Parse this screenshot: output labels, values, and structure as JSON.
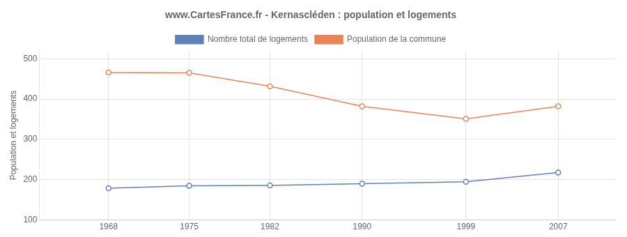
{
  "chart_data": {
    "type": "line",
    "title": "www.CartesFrance.fr - Kernascléden : population et logements",
    "ylabel": "Population et logements",
    "x": [
      1968,
      1975,
      1982,
      1990,
      1999,
      2007
    ],
    "series": [
      {
        "name": "Nombre total de logements",
        "color": "#6080b8",
        "marker": "circle",
        "line_style": "solid",
        "values": [
          179,
          185,
          186,
          190,
          195,
          218
        ]
      },
      {
        "name": "Population de la commune",
        "color": "#e8845a",
        "marker": "circle",
        "line_style": "solid",
        "values": [
          466,
          465,
          432,
          382,
          351,
          382
        ]
      }
    ],
    "xlim": [
      1962,
      2012
    ],
    "xticks": [
      1968,
      1975,
      1982,
      1990,
      1999,
      2007
    ],
    "ylim": [
      100,
      520
    ],
    "yticks": [
      100,
      200,
      300,
      400,
      500
    ],
    "grid": true,
    "legend": "top"
  }
}
